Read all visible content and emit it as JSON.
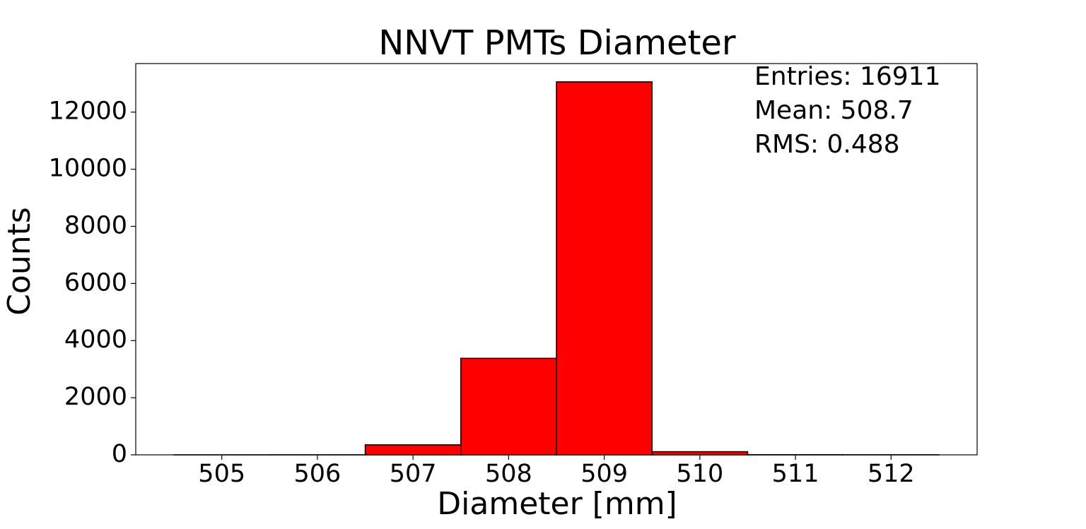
{
  "chart_data": {
    "type": "histogram",
    "title": "NNVT PMTs Diameter",
    "x_label": "Diameter [mm]",
    "y_label": "Counts",
    "bins": [
      504.5,
      505.5,
      506.5,
      507.5,
      508.5,
      509.5,
      510.5,
      511.5,
      512.5
    ],
    "values": [
      1,
      2,
      350,
      3380,
      13060,
      110,
      5,
      3
    ],
    "color": "#ff0000",
    "edge_color": "#000000",
    "xlim": [
      504.1,
      512.9
    ],
    "ylim": [
      0,
      13700
    ],
    "xticks": [
      505,
      506,
      507,
      508,
      509,
      510,
      511,
      512
    ],
    "yticks": [
      0,
      2000,
      4000,
      6000,
      8000,
      10000,
      12000
    ],
    "annotations": [
      "Entries: 16911",
      "Mean: 508.7",
      "RMS: 0.488"
    ],
    "grid": false
  }
}
